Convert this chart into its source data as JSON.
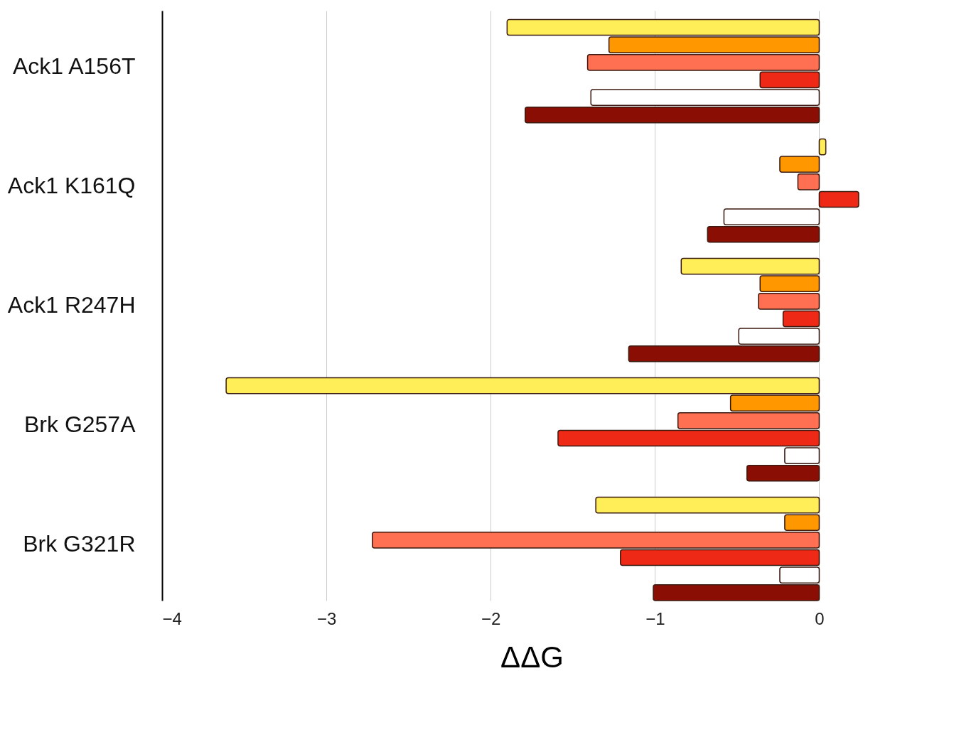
{
  "chart_data": {
    "type": "bar",
    "orientation": "horizontal",
    "xlabel": "ΔΔG",
    "categories": [
      "Ack1 A156T",
      "Ack1 K161Q",
      "Ack1 R247H",
      "Brk G257A",
      "Brk G321R"
    ],
    "series": [
      {
        "color": "#ffee58",
        "values": [
          -1.9,
          0.04,
          -0.84,
          -3.61,
          -1.36
        ]
      },
      {
        "color": "#ff9800",
        "values": [
          -1.28,
          -0.24,
          -0.36,
          -0.54,
          -0.21
        ]
      },
      {
        "color": "#ff6f52",
        "values": [
          -1.41,
          -0.13,
          -0.37,
          -0.86,
          -2.72
        ]
      },
      {
        "color": "#ee2a16",
        "values": [
          -0.36,
          0.24,
          -0.22,
          -1.59,
          -1.21
        ]
      },
      {
        "color": "#ffffff",
        "values": [
          -1.39,
          -0.58,
          -0.49,
          -0.21,
          -0.24
        ]
      },
      {
        "color": "#8b0e04",
        "values": [
          -1.79,
          -0.68,
          -1.16,
          -0.44,
          -1.01
        ]
      }
    ],
    "xlim": [
      -4,
      0.5
    ],
    "xticks": [
      -4,
      -3,
      -2,
      -1,
      0
    ],
    "grid": "x",
    "legend": false
  }
}
